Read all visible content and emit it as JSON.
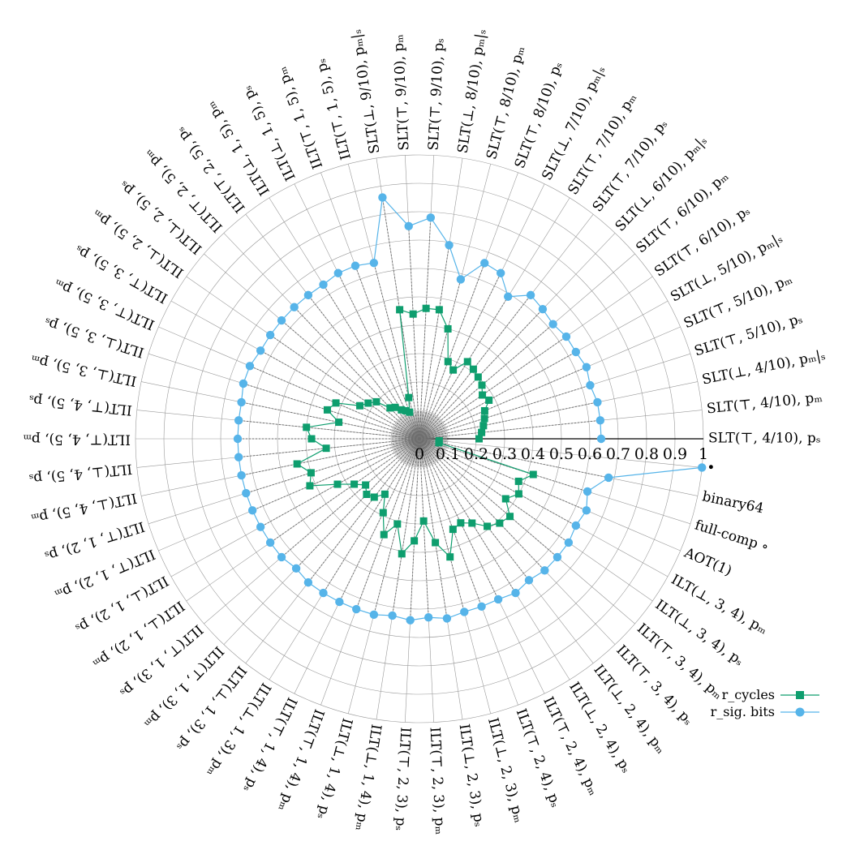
{
  "chart_data": {
    "type": "radar",
    "title": "",
    "rlim": [
      0,
      1
    ],
    "r_ticks": [
      "0",
      "0.1",
      "0.2",
      "0.3",
      "0.4",
      "0.5",
      "0.6",
      "0.7",
      "0.8",
      "0.9",
      "1"
    ],
    "grid": true,
    "legend": "bottom-right",
    "direction": "counterclockwise from right",
    "categories": [
      "SLT(⊤, 4/10), pₛ",
      "SLT(⊤, 4/10), pₘ",
      "SLT(⊥, 4/10), pₘ|ₛ",
      "SLT(⊤, 5/10), pₛ",
      "SLT(⊤, 5/10), pₘ",
      "SLT(⊥, 5/10), pₘ|ₛ",
      "SLT(⊤, 6/10), pₛ",
      "SLT(⊤, 6/10), pₘ",
      "SLT(⊥, 6/10), pₘ|ₛ",
      "SLT(⊤, 7/10), pₛ",
      "SLT(⊤, 7/10), pₘ",
      "SLT(⊥, 7/10), pₘ|ₛ",
      "SLT(⊤, 8/10), pₛ",
      "SLT(⊤, 8/10), pₘ",
      "SLT(⊥, 8/10), pₘ|ₛ",
      "SLT(⊤, 9/10), pₛ",
      "SLT(⊤, 9/10), pₘ",
      "SLT(⊥, 9/10), pₘ|ₛ",
      "ILT(⊤, 1, 5), pₛ",
      "ILT(⊤, 1, 5), pₘ",
      "ILT(⊥, 1, 5), pₛ",
      "ILT(⊥, 1, 5), pₘ",
      "ILT(⊤, 2, 5), pₛ",
      "ILT(⊤, 2, 5), pₘ",
      "ILT(⊥, 2, 5), pₛ",
      "ILT(⊥, 2, 5), pₘ",
      "ILT(⊤, 3, 5), pₛ",
      "ILT(⊤, 3, 5), pₘ",
      "ILT(⊥, 3, 5), pₛ",
      "ILT(⊥, 3, 5), pₘ",
      "ILT(⊤, 4, 5), pₛ",
      "ILT(⊤, 4, 5), pₘ",
      "ILT(⊥, 4, 5), pₛ",
      "ILT(⊥, 4, 5), pₘ",
      "ILT(⊤, 1, 2), pₛ",
      "ILT(⊤, 1, 2), pₘ",
      "ILT(⊥, 1, 2), pₛ",
      "ILT(⊥, 1, 2), pₘ",
      "ILT(⊤, 1, 3), pₛ",
      "ILT(⊤, 1, 3), pₘ",
      "ILT(⊥, 1, 3), pₛ",
      "ILT(⊥, 1, 3), pₘ",
      "ILT(⊤, 1, 4), pₛ",
      "ILT(⊤, 1, 4), pₘ",
      "ILT(⊥, 1, 4), pₛ",
      "ILT(⊥, 1, 4), pₘ",
      "ILT(⊤, 2, 3), pₛ",
      "ILT(⊤, 2, 3), pₘ",
      "ILT(⊥, 2, 3), pₛ",
      "ILT(⊥, 2, 3), pₘ",
      "ILT(⊤, 2, 4), pₛ",
      "ILT(⊤, 2, 4), pₘ",
      "ILT(⊥, 2, 4), pₛ",
      "ILT(⊥, 2, 4), pₘ",
      "ILT(⊤, 3, 4), pₛ",
      "ILT(⊤, 3, 4), pₘ",
      "ILT(⊥, 3, 4), pₛ",
      "ILT(⊥, 3, 4), pₘ",
      "AOT(1)",
      "full-comp ∘",
      "binary64",
      "•"
    ],
    "series": [
      {
        "name": "r_cycles",
        "marker": "square",
        "color": "#0e9e6e",
        "values": [
          0.21,
          0.22,
          0.23,
          0.24,
          0.25,
          0.28,
          0.27,
          0.29,
          0.3,
          0.31,
          0.32,
          0.27,
          0.29,
          0.4,
          0.46,
          0.46,
          0.44,
          0.46,
          0.15,
          0.1,
          0.11,
          0.12,
          0.14,
          0.15,
          0.2,
          0.22,
          0.24,
          0.32,
          0.34,
          0.29,
          0.4,
          0.38,
          0.33,
          0.44,
          0.4,
          0.42,
          0.33,
          0.28,
          0.25,
          0.27,
          0.26,
          0.23,
          0.29,
          0.36,
          0.31,
          0.41,
          0.36,
          0.29,
          0.37,
          0.43,
          0.34,
          0.33,
          0.35,
          0.39,
          0.41,
          0.42,
          0.37,
          0.4,
          0.38,
          0.42,
          0.07,
          0.07
        ]
      },
      {
        "name": "r_sig. bits",
        "marker": "circle",
        "color": "#56b4e9",
        "values": [
          0.64,
          0.64,
          0.64,
          0.63,
          0.64,
          0.63,
          0.63,
          0.62,
          0.63,
          0.64,
          0.59,
          0.65,
          0.66,
          0.58,
          0.69,
          0.78,
          0.75,
          0.86,
          0.64,
          0.65,
          0.65,
          0.64,
          0.64,
          0.64,
          0.64,
          0.64,
          0.64,
          0.65,
          0.65,
          0.64,
          0.64,
          0.64,
          0.64,
          0.64,
          0.64,
          0.64,
          0.64,
          0.64,
          0.64,
          0.63,
          0.64,
          0.64,
          0.64,
          0.64,
          0.64,
          0.63,
          0.64,
          0.63,
          0.64,
          0.63,
          0.63,
          0.63,
          0.64,
          0.63,
          0.64,
          0.64,
          0.64,
          0.63,
          0.64,
          0.62,
          0.68,
          1.0
        ]
      }
    ],
    "legend_entries": [
      "r_cycles",
      "r_sig. bits"
    ]
  },
  "colors": {
    "cycles": "#0e9e6e",
    "sig_bits": "#56b4e9",
    "grid": "#999999",
    "dotted": "#6e6e6e"
  }
}
